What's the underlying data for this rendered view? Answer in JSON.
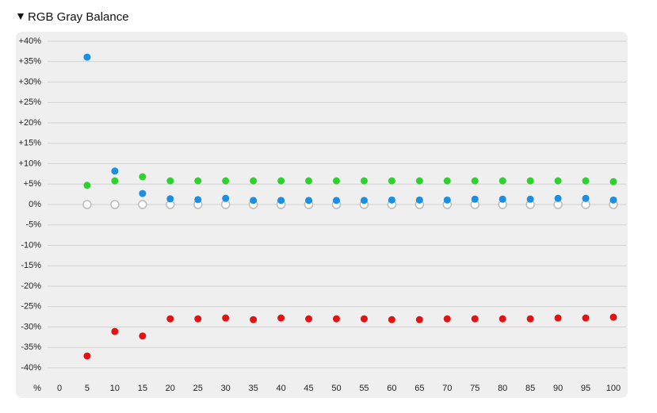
{
  "chart_data": {
    "type": "scatter",
    "title": "RGB Gray Balance",
    "x_label": "%",
    "x": [
      0,
      5,
      10,
      15,
      20,
      25,
      30,
      35,
      40,
      45,
      50,
      55,
      60,
      65,
      70,
      75,
      80,
      85,
      90,
      95,
      100
    ],
    "xlim": [
      0,
      100
    ],
    "xticks": [
      0,
      5,
      10,
      15,
      20,
      25,
      30,
      35,
      40,
      45,
      50,
      55,
      60,
      65,
      70,
      75,
      80,
      85,
      90,
      95,
      100
    ],
    "ylim": [
      -40,
      40
    ],
    "yticks": [
      {
        "value": 40,
        "label": "+40%"
      },
      {
        "value": 35,
        "label": "+35%"
      },
      {
        "value": 30,
        "label": "+30%"
      },
      {
        "value": 25,
        "label": "+25%"
      },
      {
        "value": 20,
        "label": "+20%"
      },
      {
        "value": 15,
        "label": "+15%"
      },
      {
        "value": 10,
        "label": "+10%"
      },
      {
        "value": 5,
        "label": "+5%"
      },
      {
        "value": 0,
        "label": "0%"
      },
      {
        "value": -5,
        "label": "-5%"
      },
      {
        "value": -10,
        "label": "-10%"
      },
      {
        "value": -15,
        "label": "-15%"
      },
      {
        "value": -20,
        "label": "-20%"
      },
      {
        "value": -25,
        "label": "-25%"
      },
      {
        "value": -30,
        "label": "-30%"
      },
      {
        "value": -35,
        "label": "-35%"
      },
      {
        "value": -40,
        "label": "-40%"
      }
    ],
    "grid": true,
    "series": [
      {
        "color": "#ffffff",
        "stroke": "#bbbbbb",
        "values": [
          null,
          0,
          0,
          0,
          0,
          0,
          0,
          0,
          0,
          0,
          0,
          0,
          0,
          0,
          0,
          0,
          0,
          0,
          0,
          0,
          0
        ]
      },
      {
        "color": "#1a8fe3",
        "values": [
          null,
          36.1,
          8.2,
          2.7,
          1.4,
          1.2,
          1.5,
          1.0,
          1.0,
          1.0,
          1.0,
          1.0,
          1.1,
          1.1,
          1.1,
          1.3,
          1.3,
          1.3,
          1.5,
          1.5,
          1.1
        ]
      },
      {
        "color": "#2ed12e",
        "values": [
          null,
          4.7,
          5.8,
          6.8,
          5.8,
          5.8,
          5.8,
          5.8,
          5.8,
          5.8,
          5.8,
          5.8,
          5.8,
          5.8,
          5.8,
          5.8,
          5.8,
          5.8,
          5.8,
          5.8,
          5.6
        ]
      },
      {
        "color": "#e01414",
        "values": [
          null,
          -37.1,
          -31.1,
          -32.2,
          -28.0,
          -28.0,
          -27.8,
          -28.2,
          -27.8,
          -28.0,
          -28.0,
          -28.0,
          -28.2,
          -28.2,
          -28.0,
          -28.0,
          -28.0,
          -28.0,
          -27.8,
          -27.8,
          -27.6
        ]
      }
    ]
  }
}
